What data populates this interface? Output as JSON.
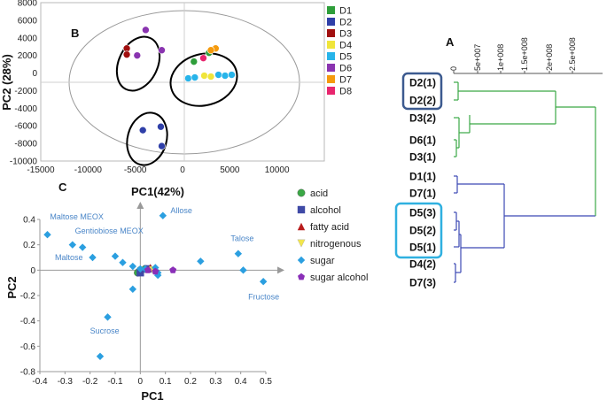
{
  "colors": {
    "D1": "#2e9e3a",
    "D2": "#2f3fa8",
    "D3": "#a10f0f",
    "D4": "#f0e53a",
    "D5": "#27b4ea",
    "D6": "#8a34b0",
    "D7": "#f59a0c",
    "D8": "#e8266e",
    "acid": "#3aa845",
    "alcohol": "#3f4aa6",
    "fatty_acid": "#b81c1c",
    "nitrogenous": "#f3e64b",
    "sugar": "#2b9fe0",
    "sugar_alcohol": "#8a2fb8",
    "tree_green": "#3aa845",
    "tree_blue": "#3c48b4",
    "box_dark": "#3c5a8f",
    "box_light": "#2fb0e0",
    "annot": "#4a86c8"
  },
  "chart_data": [
    {
      "id": "B",
      "type": "scatter",
      "panel_label": "B",
      "title": "",
      "xlabel": "PC1(42%)",
      "ylabel": "PC2 (28%)",
      "xlim": [
        -15000,
        15000
      ],
      "ylim": [
        -10000,
        8000
      ],
      "xticks": [
        -15000,
        -10000,
        -5000,
        0,
        5000,
        10000
      ],
      "yticks": [
        8000,
        6000,
        4000,
        2000,
        0,
        -2000,
        -4000,
        -6000,
        -8000,
        -10000
      ],
      "legend": [
        "D1",
        "D2",
        "D3",
        "D4",
        "D5",
        "D6",
        "D7",
        "D8"
      ],
      "legend_position": "right",
      "series": [
        {
          "name": "D1",
          "points": [
            [
              1200,
              1300
            ],
            [
              2800,
              2300
            ]
          ]
        },
        {
          "name": "D2",
          "points": [
            [
              -4200,
              -6500
            ],
            [
              -2300,
              -6100
            ],
            [
              -2200,
              -8300
            ]
          ]
        },
        {
          "name": "D3",
          "points": [
            [
              -5900,
              2800
            ],
            [
              -5900,
              2100
            ]
          ]
        },
        {
          "name": "D4",
          "points": [
            [
              2300,
              -300
            ],
            [
              3000,
              -400
            ]
          ]
        },
        {
          "name": "D5",
          "points": [
            [
              600,
              -600
            ],
            [
              1300,
              -500
            ],
            [
              3800,
              -200
            ],
            [
              4500,
              -300
            ],
            [
              5200,
              -200
            ]
          ]
        },
        {
          "name": "D6",
          "points": [
            [
              -3900,
              4900
            ],
            [
              -4800,
              2000
            ],
            [
              -2200,
              2600
            ]
          ]
        },
        {
          "name": "D7",
          "points": [
            [
              3500,
              2800
            ],
            [
              3000,
              2600
            ]
          ]
        },
        {
          "name": "D8",
          "points": [
            [
              2200,
              1700
            ]
          ]
        }
      ]
    },
    {
      "id": "A",
      "type": "dendrogram",
      "panel_label": "A",
      "axis_ticks": [
        "0",
        "5e+007",
        "1e+008",
        "1.5e+008",
        "2e+008",
        "2.5e+008"
      ],
      "leaves": [
        "D2(1)",
        "D2(2)",
        "D3(2)",
        "D6(1)",
        "D3(1)",
        "D1(1)",
        "D7(1)",
        "D5(3)",
        "D5(2)",
        "D5(1)",
        "D4(2)",
        "D7(3)"
      ]
    },
    {
      "id": "C",
      "type": "scatter",
      "panel_label": "C",
      "title": "",
      "xlabel": "PC1",
      "ylabel": "PC2",
      "xlim": [
        -0.4,
        0.5
      ],
      "ylim": [
        -0.8,
        0.5
      ],
      "xticks": [
        "-0.4",
        "-0.3",
        "-0.2",
        "-0.1",
        "0",
        "0.1",
        "0.2",
        "0.3",
        "0.4",
        "0.5"
      ],
      "yticks": [
        "0.4",
        "0.2",
        "0",
        "-0.2",
        "-0.4",
        "-0.6",
        "-0.8"
      ],
      "legend": [
        "acid",
        "alcohol",
        "fatty acid",
        "nitrogenous",
        "sugar",
        "sugar alcohol"
      ],
      "legend_position": "right",
      "annotations": [
        {
          "text": "Maltose MEOX",
          "x": -0.36,
          "y": 0.4
        },
        {
          "text": "Gentiobiose MEOX",
          "x": -0.26,
          "y": 0.29
        },
        {
          "text": "Maltose",
          "x": -0.34,
          "y": 0.08
        },
        {
          "text": "Allose",
          "x": 0.12,
          "y": 0.45
        },
        {
          "text": "Talose",
          "x": 0.36,
          "y": 0.23
        },
        {
          "text": "Fructose",
          "x": 0.43,
          "y": -0.23
        },
        {
          "text": "Sucrose",
          "x": -0.2,
          "y": -0.5
        }
      ],
      "series": [
        {
          "name": "acid",
          "marker": "circle",
          "points": [
            [
              0.0,
              0.0
            ],
            [
              -0.01,
              -0.02
            ],
            [
              0.02,
              0.01
            ]
          ]
        },
        {
          "name": "alcohol",
          "marker": "square",
          "points": [
            [
              0.03,
              0.01
            ],
            [
              0.0,
              -0.02
            ]
          ]
        },
        {
          "name": "fatty acid",
          "marker": "triangle",
          "points": [
            [
              0.04,
              0.02
            ]
          ]
        },
        {
          "name": "nitrogenous",
          "marker": "triangle-down",
          "points": [
            [
              0.05,
              0.0
            ]
          ]
        },
        {
          "name": "sugar",
          "marker": "diamond",
          "points": [
            [
              -0.37,
              0.28
            ],
            [
              -0.27,
              0.2
            ],
            [
              -0.23,
              0.18
            ],
            [
              -0.19,
              0.1
            ],
            [
              -0.1,
              0.11
            ],
            [
              -0.07,
              0.06
            ],
            [
              -0.03,
              0.03
            ],
            [
              0.09,
              0.43
            ],
            [
              -0.03,
              -0.15
            ],
            [
              -0.13,
              -0.37
            ],
            [
              -0.16,
              -0.68
            ],
            [
              0.24,
              0.07
            ],
            [
              0.39,
              0.13
            ],
            [
              0.41,
              0.0
            ],
            [
              0.49,
              -0.09
            ],
            [
              0.07,
              -0.02
            ],
            [
              0.07,
              -0.04
            ],
            [
              0.06,
              0.02
            ],
            [
              0.02,
              0.01
            ],
            [
              0.0,
              0.01
            ]
          ]
        },
        {
          "name": "sugar alcohol",
          "marker": "pentagon",
          "points": [
            [
              0.13,
              0.0
            ],
            [
              0.06,
              -0.01
            ],
            [
              0.03,
              0.0
            ]
          ]
        }
      ]
    }
  ]
}
